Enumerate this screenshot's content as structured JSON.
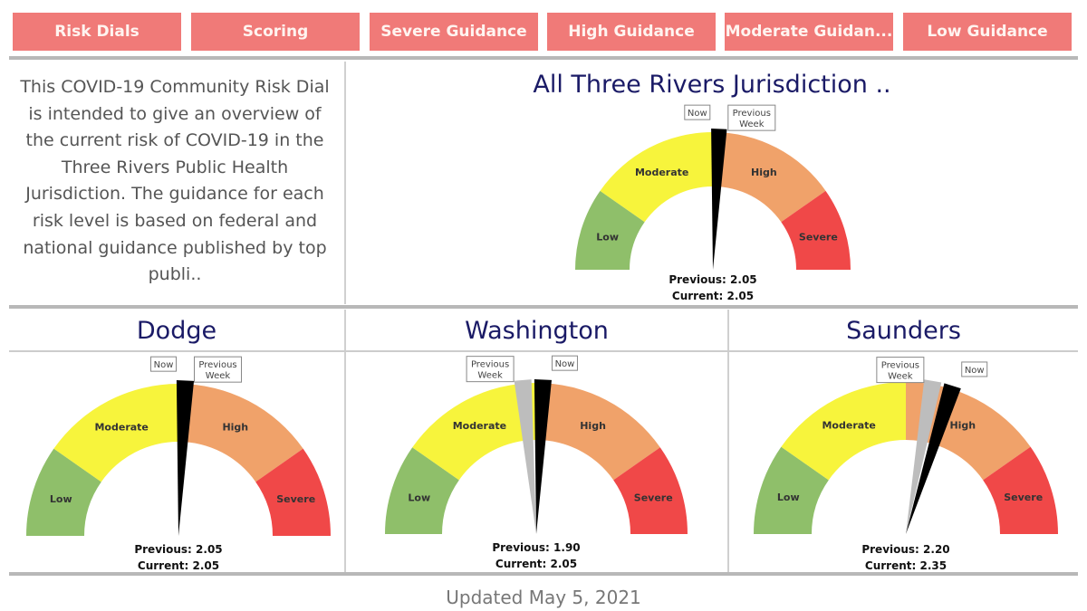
{
  "nav": [
    "Risk Dials",
    "Scoring",
    "Severe Guidance",
    "High Guidance",
    "Moderate Guidan...",
    "Low Guidance"
  ],
  "description": "This COVID-19 Community Risk Dial is intended to give an overview of the current risk of COVID-19 in the Three Rivers Public Health Jurisdiction. The guidance for each risk level is based on federal and national guidance published by top publi..",
  "segments": [
    "Low",
    "Moderate",
    "High",
    "Severe"
  ],
  "colors": {
    "low": "#8fbf6a",
    "moderate": "#f7f43c",
    "high": "#f0a26a",
    "severe": "#f04848",
    "button": "#f07a78",
    "title": "#1a1a66"
  },
  "callouts": {
    "now": "Now",
    "previous_line1": "Previous",
    "previous_line2": "Week"
  },
  "dials": [
    {
      "title": "All Three Rivers Jurisdiction ..",
      "previous": 2.05,
      "current": 2.05,
      "previous_text": "Previous: 2.05",
      "current_text": "Current: 2.05"
    },
    {
      "title": "Dodge",
      "previous": 2.05,
      "current": 2.05,
      "previous_text": "Previous: 2.05",
      "current_text": "Current: 2.05"
    },
    {
      "title": "Washington",
      "previous": 1.9,
      "current": 2.05,
      "previous_text": "Previous: 1.90",
      "current_text": "Current: 2.05"
    },
    {
      "title": "Saunders",
      "previous": 2.2,
      "current": 2.35,
      "previous_text": "Previous: 2.20",
      "current_text": "Current: 2.35"
    }
  ],
  "footer": "Updated May 5, 2021"
}
